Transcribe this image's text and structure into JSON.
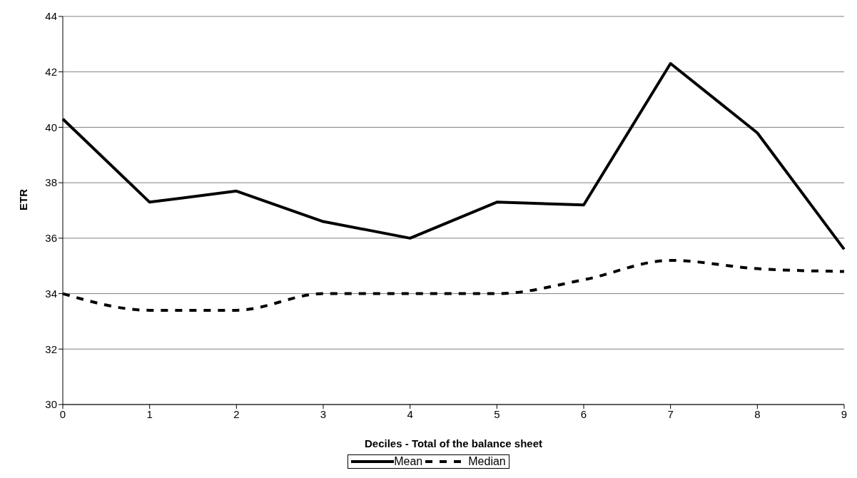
{
  "chart_data": {
    "type": "line",
    "xlabel": "Deciles - Total of the balance sheet",
    "ylabel": "ETR",
    "categories": [
      "0",
      "1",
      "2",
      "3",
      "4",
      "5",
      "6",
      "7",
      "8",
      "9"
    ],
    "series": [
      {
        "name": "Mean",
        "color": "#000000",
        "line_style": "solid",
        "values": [
          40.3,
          37.3,
          37.7,
          36.6,
          36.0,
          37.3,
          37.2,
          42.3,
          39.8,
          35.6
        ]
      },
      {
        "name": "Median",
        "color": "#000000",
        "line_style": "dashed",
        "values": [
          34.0,
          33.4,
          33.4,
          34.0,
          34.0,
          34.0,
          34.5,
          35.2,
          34.9,
          34.8
        ]
      }
    ],
    "ylim": [
      30,
      44
    ],
    "yticks": [
      30,
      32,
      34,
      36,
      38,
      40,
      42,
      44
    ],
    "grid": "y",
    "legend": "bottom",
    "marker": "none"
  }
}
